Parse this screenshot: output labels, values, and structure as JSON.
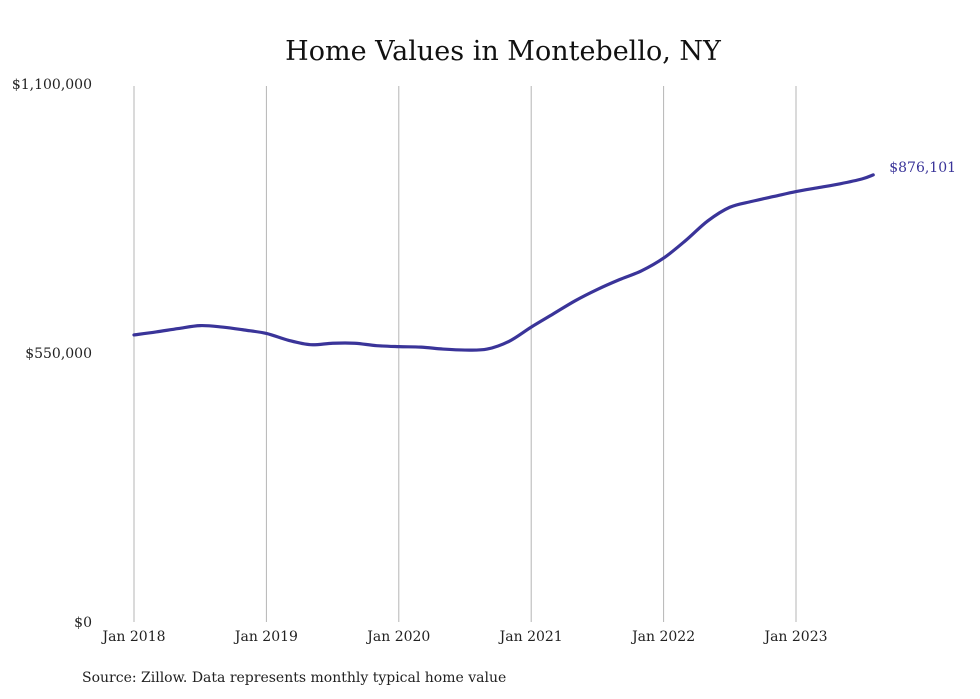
{
  "chart_data": {
    "type": "line",
    "title": "Home Values in Montebello, NY",
    "xlabel": "",
    "ylabel": "",
    "ylim": [
      0,
      1100000
    ],
    "y_ticks": [
      "$0",
      "$550,000",
      "$1,100,000"
    ],
    "x_ticks": [
      {
        "label": "Jan 2018",
        "x": "2018-01"
      },
      {
        "label": "Jan 2019",
        "x": "2019-01"
      },
      {
        "label": "Jan 2020",
        "x": "2020-01"
      },
      {
        "label": "Jan 2021",
        "x": "2021-01"
      },
      {
        "label": "Jan 2022",
        "x": "2022-01"
      },
      {
        "label": "Jan 2023",
        "x": "2023-01"
      }
    ],
    "grid": "vertical",
    "series": [
      {
        "color": "#3a3499",
        "points": [
          {
            "x": "2018-01",
            "y": 587000
          },
          {
            "x": "2018-03",
            "y": 593000
          },
          {
            "x": "2018-05",
            "y": 600000
          },
          {
            "x": "2018-07",
            "y": 606000
          },
          {
            "x": "2018-09",
            "y": 603000
          },
          {
            "x": "2018-11",
            "y": 597000
          },
          {
            "x": "2019-01",
            "y": 590000
          },
          {
            "x": "2019-03",
            "y": 576000
          },
          {
            "x": "2019-05",
            "y": 567000
          },
          {
            "x": "2019-07",
            "y": 570000
          },
          {
            "x": "2019-09",
            "y": 570000
          },
          {
            "x": "2019-11",
            "y": 565000
          },
          {
            "x": "2020-01",
            "y": 563000
          },
          {
            "x": "2020-03",
            "y": 562000
          },
          {
            "x": "2020-05",
            "y": 558000
          },
          {
            "x": "2020-07",
            "y": 556000
          },
          {
            "x": "2020-09",
            "y": 558000
          },
          {
            "x": "2020-11",
            "y": 574000
          },
          {
            "x": "2021-01",
            "y": 603000
          },
          {
            "x": "2021-03",
            "y": 630000
          },
          {
            "x": "2021-05",
            "y": 657000
          },
          {
            "x": "2021-07",
            "y": 680000
          },
          {
            "x": "2021-09",
            "y": 700000
          },
          {
            "x": "2021-11",
            "y": 718000
          },
          {
            "x": "2022-01",
            "y": 744000
          },
          {
            "x": "2022-03",
            "y": 780000
          },
          {
            "x": "2022-05",
            "y": 820000
          },
          {
            "x": "2022-07",
            "y": 848000
          },
          {
            "x": "2022-09",
            "y": 860000
          },
          {
            "x": "2022-11",
            "y": 870000
          },
          {
            "x": "2023-01",
            "y": 880000
          },
          {
            "x": "2023-03",
            "y": 888000
          },
          {
            "x": "2023-05",
            "y": 896000
          },
          {
            "x": "2023-07",
            "y": 906000
          },
          {
            "x": "2023-08",
            "y": 876101
          }
        ],
        "end_label": "$876,101"
      }
    ]
  },
  "source": "Source: Zillow. Data represents monthly typical home value"
}
